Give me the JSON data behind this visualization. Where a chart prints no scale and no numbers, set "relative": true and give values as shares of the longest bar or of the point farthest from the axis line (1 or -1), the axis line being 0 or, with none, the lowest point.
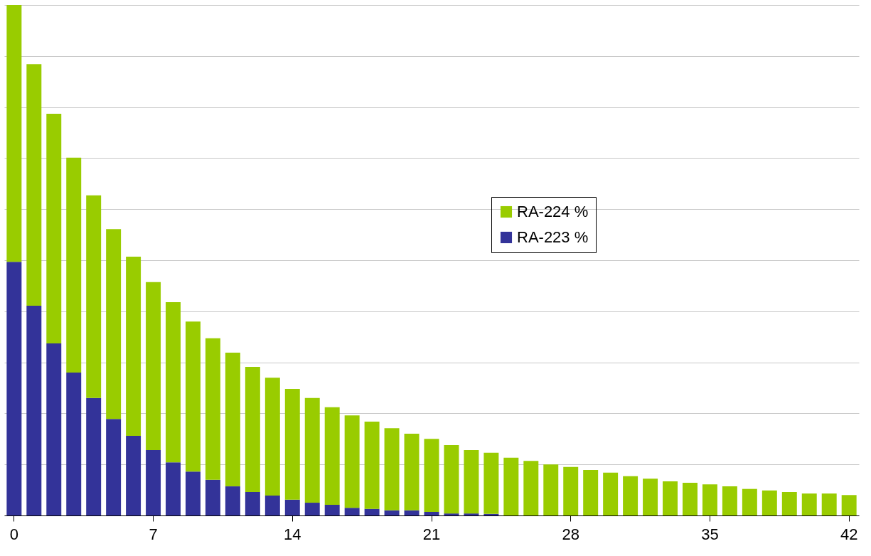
{
  "chart_data": {
    "type": "bar",
    "stacked": true,
    "relative": true,
    "grid": "y",
    "legend": "center",
    "categories": [
      "0",
      null,
      null,
      null,
      null,
      null,
      null,
      "7",
      null,
      null,
      null,
      null,
      null,
      null,
      "14",
      null,
      null,
      null,
      null,
      null,
      null,
      "21",
      null,
      null,
      null,
      null,
      null,
      null,
      "28",
      null,
      null,
      null,
      null,
      null,
      null,
      "35",
      null,
      null,
      null,
      null,
      null,
      null,
      "42"
    ],
    "series": [
      {
        "name": "RA-223 %",
        "color": "#333399",
        "values": [
          0.497,
          0.411,
          0.337,
          0.28,
          0.23,
          0.189,
          0.156,
          0.128,
          0.104,
          0.086,
          0.07,
          0.057,
          0.046,
          0.039,
          0.031,
          0.025,
          0.021,
          0.015,
          0.013,
          0.01,
          0.01,
          0.007,
          0.004,
          0.004,
          0.003,
          0,
          0,
          0,
          0,
          0,
          0,
          0,
          0,
          0,
          0,
          0,
          0,
          0,
          0,
          0,
          0,
          0,
          0
        ]
      },
      {
        "name": "RA-224 %",
        "color": "#99cc00",
        "values": [
          0.503,
          0.473,
          0.45,
          0.421,
          0.397,
          0.372,
          0.351,
          0.329,
          0.314,
          0.294,
          0.277,
          0.262,
          0.245,
          0.231,
          0.217,
          0.205,
          0.191,
          0.181,
          0.171,
          0.161,
          0.15,
          0.143,
          0.134,
          0.124,
          0.12,
          0.113,
          0.107,
          0.1,
          0.095,
          0.089,
          0.084,
          0.077,
          0.072,
          0.067,
          0.064,
          0.061,
          0.057,
          0.052,
          0.049,
          0.046,
          0.043,
          0.043,
          0.04
        ]
      }
    ]
  }
}
